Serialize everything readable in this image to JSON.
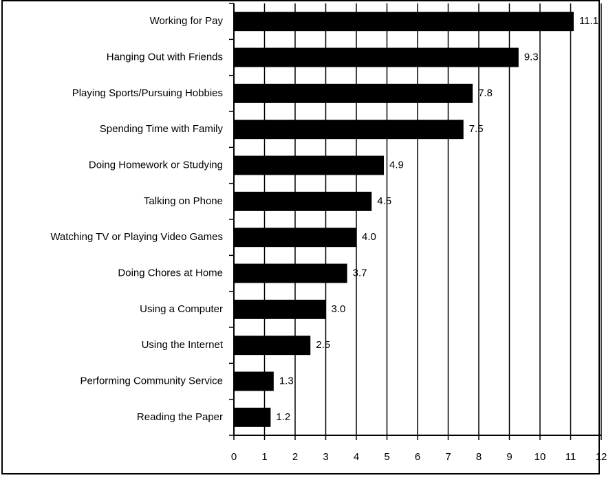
{
  "chart_data": {
    "type": "bar",
    "orientation": "horizontal",
    "categories": [
      "Working for Pay",
      "Hanging Out with Friends",
      "Playing Sports/Pursuing Hobbies",
      "Spending Time with Family",
      "Doing Homework or Studying",
      "Talking on Phone",
      "Watching TV or Playing Video Games",
      "Doing Chores at Home",
      "Using a Computer",
      "Using the Internet",
      "Performing Community Service",
      "Reading the Paper"
    ],
    "values": [
      11.1,
      9.3,
      7.8,
      7.5,
      4.9,
      4.5,
      4.0,
      3.7,
      3.0,
      2.5,
      1.3,
      1.2
    ],
    "value_labels": [
      "11.1",
      "9.3",
      "7.8",
      "7.5",
      "4.9",
      "4.5",
      "4.0",
      "3.7",
      "3.0",
      "2.5",
      "1.3",
      "1.2"
    ],
    "color": "#000000",
    "xlim": [
      0,
      12
    ],
    "xticks": [
      0,
      1,
      2,
      3,
      4,
      5,
      6,
      7,
      8,
      9,
      10,
      11,
      12
    ],
    "grid": true
  }
}
